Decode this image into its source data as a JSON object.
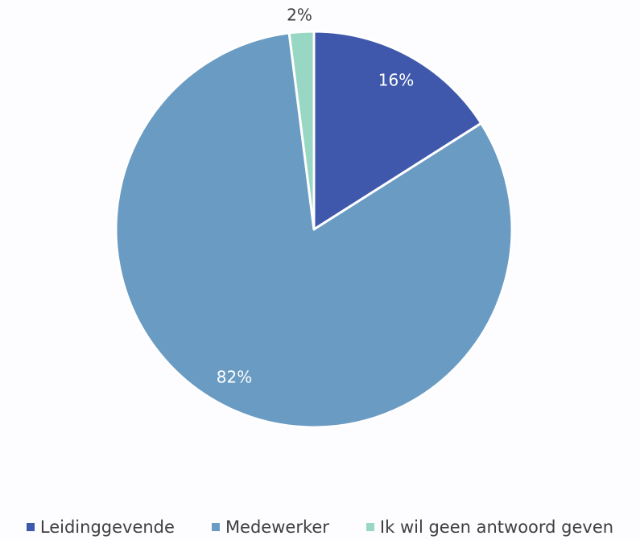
{
  "chart_data": {
    "type": "pie",
    "title": "",
    "slices": [
      {
        "name": "Leidinggevende",
        "value": 16,
        "label": "16%",
        "color": "#3f58ab",
        "label_color": "#ffffff"
      },
      {
        "name": "Medewerker",
        "value": 82,
        "label": "82%",
        "color": "#6a9bc3",
        "label_color": "#ffffff"
      },
      {
        "name": "Ik wil geen antwoord geven",
        "value": 2,
        "label": "2%",
        "color": "#98d7c3",
        "label_color": "#404040"
      }
    ],
    "start_angle_deg": 0,
    "direction": "clockwise",
    "legend_position": "bottom"
  }
}
